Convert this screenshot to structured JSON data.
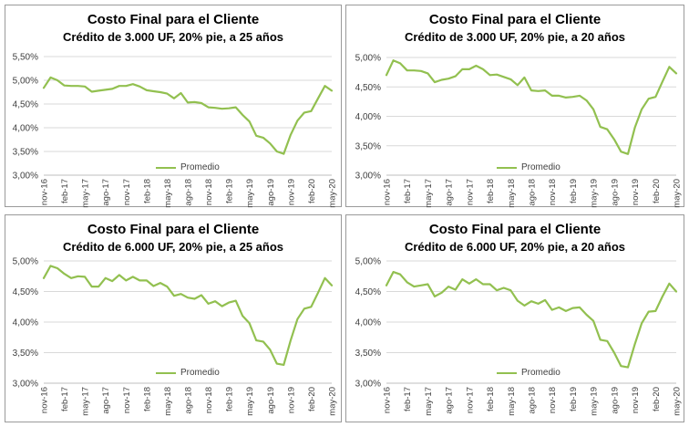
{
  "chart_data": [
    {
      "type": "line",
      "title": "Costo Final para el Cliente",
      "subtitle": "Crédito de 3.000 UF, 20% pie, a 25 años",
      "xlabel": "",
      "ylabel": "",
      "ylim": [
        3.0,
        5.5
      ],
      "y_ticks": [
        "3,00%",
        "3,50%",
        "4,00%",
        "4,50%",
        "5,00%",
        "5,50%"
      ],
      "y_tick_values": [
        3.0,
        3.5,
        4.0,
        4.5,
        5.0,
        5.5
      ],
      "x_tick_labels": [
        "nov-16",
        "feb-17",
        "may-17",
        "ago-17",
        "nov-17",
        "feb-18",
        "may-18",
        "ago-18",
        "nov-18",
        "feb-19",
        "may-19",
        "ago-19",
        "nov-19",
        "feb-20",
        "may-20"
      ],
      "grid": "horizontal",
      "legend": "bottom-center",
      "series": [
        {
          "name": "Promedio",
          "color": "#92c050",
          "values": [
            4.84,
            5.06,
            5.0,
            4.89,
            4.88,
            4.88,
            4.87,
            4.76,
            4.78,
            4.8,
            4.82,
            4.88,
            4.88,
            4.92,
            4.87,
            4.79,
            4.77,
            4.75,
            4.72,
            4.62,
            4.73,
            4.53,
            4.54,
            4.52,
            4.43,
            4.42,
            4.4,
            4.41,
            4.43,
            4.27,
            4.13,
            3.83,
            3.79,
            3.67,
            3.5,
            3.45,
            3.85,
            4.15,
            4.32,
            4.35,
            4.62,
            4.88,
            4.78
          ]
        }
      ]
    },
    {
      "type": "line",
      "title": "Costo Final para el Cliente",
      "subtitle": "Crédito de 3.000 UF, 20% pie, a 20 años",
      "xlabel": "",
      "ylabel": "",
      "ylim": [
        3.0,
        5.0
      ],
      "y_ticks": [
        "3,00%",
        "3,50%",
        "4,00%",
        "4,50%",
        "5,00%"
      ],
      "y_tick_values": [
        3.0,
        3.5,
        4.0,
        4.5,
        5.0
      ],
      "x_tick_labels": [
        "nov-16",
        "feb-17",
        "may-17",
        "ago-17",
        "nov-17",
        "feb-18",
        "may-18",
        "ago-18",
        "nov-18",
        "feb-19",
        "may-19",
        "ago-19",
        "nov-19",
        "feb-20",
        "may-20"
      ],
      "grid": "horizontal",
      "legend": "bottom-center",
      "series": [
        {
          "name": "Promedio",
          "color": "#92c050",
          "values": [
            4.7,
            4.95,
            4.9,
            4.78,
            4.78,
            4.77,
            4.73,
            4.58,
            4.62,
            4.64,
            4.68,
            4.8,
            4.8,
            4.86,
            4.8,
            4.7,
            4.71,
            4.67,
            4.63,
            4.53,
            4.66,
            4.44,
            4.43,
            4.44,
            4.35,
            4.35,
            4.32,
            4.33,
            4.35,
            4.27,
            4.12,
            3.82,
            3.78,
            3.61,
            3.4,
            3.36,
            3.81,
            4.12,
            4.3,
            4.33,
            4.59,
            4.84,
            4.73
          ]
        }
      ]
    },
    {
      "type": "line",
      "title": "Costo Final para el Cliente",
      "subtitle": "Crédito de 6.000 UF, 20% pie, a 25 años",
      "xlabel": "",
      "ylabel": "",
      "ylim": [
        3.0,
        5.0
      ],
      "y_ticks": [
        "3,00%",
        "3,50%",
        "4,00%",
        "4,50%",
        "5,00%"
      ],
      "y_tick_values": [
        3.0,
        3.5,
        4.0,
        4.5,
        5.0
      ],
      "x_tick_labels": [
        "nov-16",
        "feb-17",
        "may-17",
        "ago-17",
        "nov-17",
        "feb-18",
        "may-18",
        "ago-18",
        "nov-18",
        "feb-19",
        "may-19",
        "ago-19",
        "nov-19",
        "feb-20",
        "may-20"
      ],
      "grid": "horizontal",
      "legend": "bottom-center",
      "series": [
        {
          "name": "Promedio",
          "color": "#92c050",
          "values": [
            4.72,
            4.92,
            4.88,
            4.79,
            4.72,
            4.75,
            4.74,
            4.58,
            4.58,
            4.72,
            4.67,
            4.77,
            4.68,
            4.74,
            4.68,
            4.68,
            4.59,
            4.64,
            4.58,
            4.43,
            4.46,
            4.4,
            4.38,
            4.44,
            4.3,
            4.34,
            4.26,
            4.32,
            4.35,
            4.1,
            3.98,
            3.7,
            3.68,
            3.55,
            3.32,
            3.3,
            3.7,
            4.05,
            4.22,
            4.25,
            4.48,
            4.72,
            4.6
          ]
        }
      ]
    },
    {
      "type": "line",
      "title": "Costo Final para el Cliente",
      "subtitle": "Crédito de 6.000 UF, 20% pie, a 20 años",
      "xlabel": "",
      "ylabel": "",
      "ylim": [
        3.0,
        5.0
      ],
      "y_ticks": [
        "3,00%",
        "3,50%",
        "4,00%",
        "4,50%",
        "5,00%"
      ],
      "y_tick_values": [
        3.0,
        3.5,
        4.0,
        4.5,
        5.0
      ],
      "x_tick_labels": [
        "nov-16",
        "feb-17",
        "may-17",
        "ago-17",
        "nov-17",
        "feb-18",
        "may-18",
        "ago-18",
        "nov-18",
        "feb-19",
        "may-19",
        "ago-19",
        "nov-19",
        "feb-20",
        "may-20"
      ],
      "grid": "horizontal",
      "legend": "bottom-center",
      "series": [
        {
          "name": "Promedio",
          "color": "#92c050",
          "values": [
            4.6,
            4.82,
            4.78,
            4.65,
            4.58,
            4.6,
            4.62,
            4.42,
            4.48,
            4.58,
            4.53,
            4.7,
            4.63,
            4.7,
            4.62,
            4.62,
            4.52,
            4.56,
            4.52,
            4.35,
            4.27,
            4.34,
            4.3,
            4.36,
            4.2,
            4.24,
            4.18,
            4.23,
            4.24,
            4.12,
            4.02,
            3.71,
            3.69,
            3.5,
            3.28,
            3.26,
            3.64,
            3.98,
            4.17,
            4.18,
            4.42,
            4.63,
            4.5
          ]
        }
      ]
    }
  ]
}
